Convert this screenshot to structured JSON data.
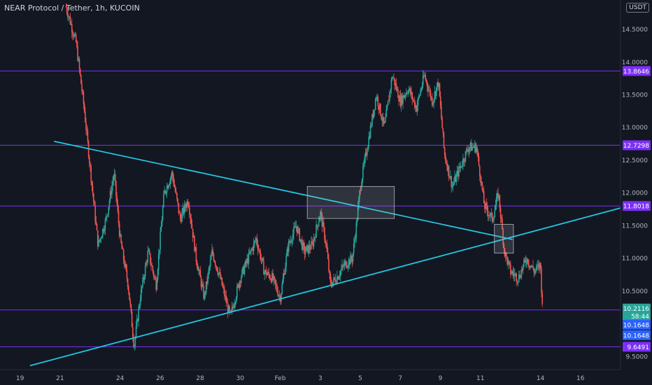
{
  "header": {
    "title": "NEAR Protocol / Tether, 1h, KUCOIN",
    "currency_badge": "USDT"
  },
  "colors": {
    "background": "#131722",
    "up": "#26a69a",
    "down": "#ef5350",
    "level_line": "#7b2ff7",
    "trendline": "#22c5e0",
    "box_stroke": "#b2b5be",
    "axis_text": "#b2b5be",
    "price_tag": "#7b2ff7",
    "last_price_tag": "#26a69a",
    "info_tag": "#2962ff"
  },
  "chart_data": {
    "type": "candlestick",
    "y_axis": {
      "min": 9.3,
      "max": 14.95,
      "ticks": [
        "9.5000",
        "10.5000",
        "11.0000",
        "11.5000",
        "12.0000",
        "12.5000",
        "13.0000",
        "13.5000",
        "14.0000",
        "14.5000"
      ]
    },
    "x_axis": {
      "min": 18.0,
      "max": 49.0,
      "ticks": [
        {
          "label": "19",
          "x": 19
        },
        {
          "label": "21",
          "x": 21
        },
        {
          "label": "24",
          "x": 24
        },
        {
          "label": "26",
          "x": 26
        },
        {
          "label": "28",
          "x": 28
        },
        {
          "label": "30",
          "x": 30
        },
        {
          "label": "Feb",
          "x": 32
        },
        {
          "label": "3",
          "x": 34
        },
        {
          "label": "5",
          "x": 36
        },
        {
          "label": "7",
          "x": 38
        },
        {
          "label": "9",
          "x": 40
        },
        {
          "label": "11",
          "x": 42
        },
        {
          "label": "14",
          "x": 45
        },
        {
          "label": "16",
          "x": 47
        }
      ]
    },
    "price_path": [
      [
        21.3,
        14.85
      ],
      [
        21.8,
        14.3
      ],
      [
        22.2,
        13.3
      ],
      [
        22.5,
        12.4
      ],
      [
        22.9,
        11.2
      ],
      [
        23.3,
        11.6
      ],
      [
        23.7,
        12.3
      ],
      [
        24.0,
        11.3
      ],
      [
        24.4,
        10.6
      ],
      [
        24.7,
        9.65
      ],
      [
        25.0,
        10.4
      ],
      [
        25.4,
        11.1
      ],
      [
        25.8,
        10.6
      ],
      [
        26.2,
        12.0
      ],
      [
        26.6,
        12.3
      ],
      [
        27.0,
        11.6
      ],
      [
        27.4,
        11.9
      ],
      [
        27.8,
        11.0
      ],
      [
        28.2,
        10.4
      ],
      [
        28.6,
        11.1
      ],
      [
        29.0,
        10.7
      ],
      [
        29.5,
        10.1
      ],
      [
        30.0,
        10.7
      ],
      [
        30.4,
        11.0
      ],
      [
        30.8,
        11.3
      ],
      [
        31.2,
        10.8
      ],
      [
        31.6,
        10.7
      ],
      [
        32.0,
        10.4
      ],
      [
        32.4,
        11.2
      ],
      [
        32.8,
        11.5
      ],
      [
        33.2,
        11.1
      ],
      [
        33.6,
        11.2
      ],
      [
        34.0,
        11.7
      ],
      [
        34.3,
        11.2
      ],
      [
        34.5,
        10.6
      ],
      [
        34.8,
        10.7
      ],
      [
        35.2,
        10.9
      ],
      [
        35.6,
        11.0
      ],
      [
        35.8,
        11.5
      ],
      [
        36.0,
        12.1
      ],
      [
        36.4,
        12.8
      ],
      [
        36.8,
        13.5
      ],
      [
        37.2,
        13.0
      ],
      [
        37.6,
        13.8
      ],
      [
        38.0,
        13.4
      ],
      [
        38.4,
        13.6
      ],
      [
        38.8,
        13.3
      ],
      [
        39.2,
        13.8
      ],
      [
        39.6,
        13.4
      ],
      [
        39.9,
        13.7
      ],
      [
        40.2,
        12.6
      ],
      [
        40.6,
        12.1
      ],
      [
        41.0,
        12.4
      ],
      [
        41.4,
        12.7
      ],
      [
        41.8,
        12.7
      ],
      [
        42.2,
        11.8
      ],
      [
        42.6,
        11.6
      ],
      [
        42.9,
        12.0
      ],
      [
        43.2,
        11.1
      ],
      [
        43.5,
        10.8
      ],
      [
        43.9,
        10.7
      ],
      [
        44.3,
        11.0
      ],
      [
        44.7,
        10.8
      ],
      [
        45.0,
        10.9
      ],
      [
        45.1,
        10.2
      ]
    ],
    "horizontal_levels": [
      {
        "price": 13.8646,
        "label": "13.8646"
      },
      {
        "price": 12.7298,
        "label": "12.7298"
      },
      {
        "price": 11.8018,
        "label": "11.8018"
      },
      {
        "price": 10.2116,
        "label": ""
      },
      {
        "price": 9.6491,
        "label": "9.6491"
      }
    ],
    "trendlines": [
      {
        "from": [
          20.7,
          12.79
        ],
        "to": [
          43.6,
          11.29
        ]
      },
      {
        "from": [
          19.5,
          9.36
        ],
        "to": [
          49.0,
          11.77
        ]
      }
    ],
    "boxes": [
      {
        "x0": 33.35,
        "x1": 37.7,
        "y0": 11.61,
        "y1": 12.1
      },
      {
        "x0": 42.7,
        "x1": 43.65,
        "y0": 11.08,
        "y1": 11.52
      }
    ],
    "price_tags": {
      "last": {
        "price": 10.2116,
        "lines": [
          "10.2116",
          "58:44"
        ]
      },
      "info": [
        {
          "price": 10.1648,
          "label": "10.1648"
        },
        {
          "price": 10.1648,
          "label": "10.1648"
        }
      ]
    }
  }
}
